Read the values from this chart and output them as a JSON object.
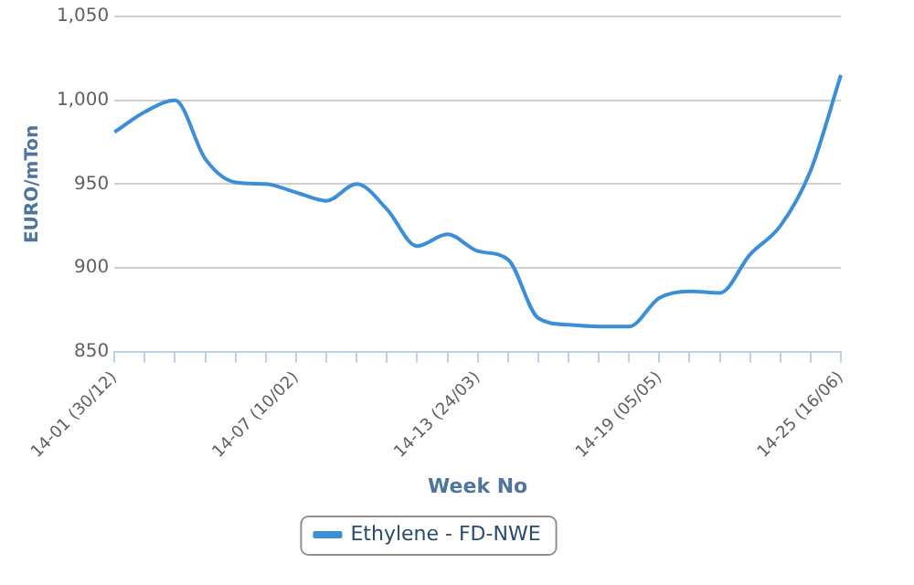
{
  "chart_data": {
    "type": "line",
    "xlabel": "Week No",
    "ylabel": "EURO/mTon",
    "categories": [
      "14-01 (30/12)",
      null,
      null,
      null,
      null,
      null,
      "14-07 (10/02)",
      null,
      null,
      null,
      null,
      null,
      "14-13 (24/03)",
      null,
      null,
      null,
      null,
      null,
      "14-19 (05/05)",
      null,
      null,
      null,
      null,
      null,
      "14-25 (16/06)"
    ],
    "ylim": [
      850,
      1050
    ],
    "yticks": [
      850,
      900,
      950,
      {
        "value": 1000,
        "label": "1,000"
      },
      {
        "value": 1050,
        "label": "1,050"
      }
    ],
    "series": [
      {
        "name": "Ethylene - FD-NWE",
        "color": "#3a8fd8",
        "values": [
          981,
          993,
          1000,
          965,
          951,
          950,
          945,
          940,
          950,
          935,
          913,
          920,
          910,
          905,
          870,
          866,
          865,
          865,
          882,
          886,
          885,
          908,
          925,
          958,
          1015
        ]
      }
    ],
    "grid": "y",
    "legend": "bottom",
    "marker": "none",
    "line_style": "solid"
  }
}
